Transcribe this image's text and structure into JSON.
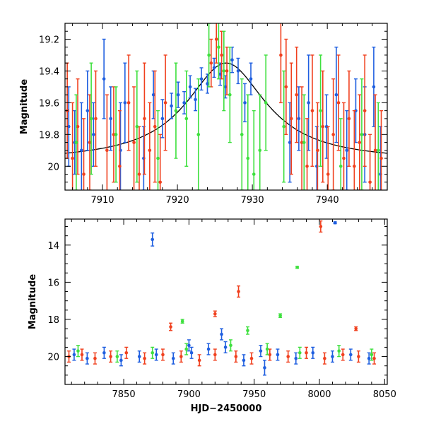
{
  "colors": {
    "blue": "#1f5fe0",
    "red": "#f0401e",
    "green": "#3ee03e",
    "model": "#000000"
  },
  "chart_data": [
    {
      "type": "scatter",
      "title": "",
      "xlabel": "",
      "ylabel": "Magnitude",
      "xlim": [
        7905,
        7948
      ],
      "ylim": [
        20.15,
        19.1
      ],
      "y_inverted": true,
      "xticks": [
        7910,
        7920,
        7930,
        7940
      ],
      "yticks": [
        19.2,
        19.4,
        19.6,
        19.8,
        20
      ],
      "ytick_labels": [
        "19.2",
        "19.4",
        "19.6",
        "19.8",
        "20"
      ],
      "model_curve": {
        "type": "microlensing-like peak",
        "t0": 7926.5,
        "peak_mag": 19.35,
        "baseline_mag": 19.97
      },
      "series": [
        {
          "color": "blue",
          "x": [
            7905.5,
            7906.3,
            7907.2,
            7908.0,
            7908.8,
            7910.2,
            7911.1,
            7912.4,
            7913.0,
            7915.5,
            7916.8,
            7918.0,
            7919.2,
            7920.1,
            7920.9,
            7921.7,
            7922.4,
            7923.2,
            7924.0,
            7924.9,
            7925.7,
            7926.4,
            7927.3,
            7928.1,
            7929.0,
            7929.8,
            7935.0,
            7936.2,
            7937.5,
            7938.6,
            7939.9,
            7941.2,
            7942.6,
            7943.8,
            7945.0,
            7946.2,
            7947.1
          ],
          "y": [
            19.75,
            19.85,
            19.9,
            19.65,
            19.8,
            19.45,
            19.7,
            19.9,
            19.6,
            19.95,
            19.55,
            19.7,
            19.62,
            19.55,
            19.6,
            19.5,
            19.58,
            19.45,
            19.48,
            19.38,
            19.42,
            19.5,
            19.33,
            19.4,
            19.6,
            19.45,
            19.85,
            19.7,
            19.6,
            20.0,
            19.75,
            19.55,
            19.9,
            19.65,
            19.8,
            19.5,
            20.05
          ],
          "err": [
            0.25,
            0.2,
            0.3,
            0.25,
            0.2,
            0.25,
            0.2,
            0.3,
            0.25,
            0.2,
            0.15,
            0.12,
            0.08,
            0.08,
            0.07,
            0.07,
            0.07,
            0.07,
            0.06,
            0.06,
            0.07,
            0.07,
            0.08,
            0.08,
            0.12,
            0.1,
            0.25,
            0.2,
            0.3,
            0.25,
            0.2,
            0.3,
            0.25,
            0.2,
            0.3,
            0.25,
            0.3
          ]
        },
        {
          "color": "red",
          "x": [
            7905.3,
            7906.0,
            7906.7,
            7907.5,
            7908.3,
            7909.1,
            7910.6,
            7911.5,
            7912.3,
            7913.5,
            7914.2,
            7914.9,
            7915.6,
            7916.3,
            7917.0,
            7917.7,
            7918.4,
            7924.5,
            7925.2,
            7925.9,
            7926.6,
            7933.8,
            7934.5,
            7935.2,
            7935.9,
            7936.6,
            7937.3,
            7938.0,
            7938.7,
            7939.4,
            7940.1,
            7940.8,
            7941.5,
            7942.2,
            7942.9,
            7943.6,
            7944.3,
            7945.0,
            7945.7,
            7946.4,
            7947.2
          ],
          "y": [
            19.65,
            19.95,
            19.75,
            20.05,
            19.85,
            19.7,
            19.9,
            19.8,
            20.0,
            19.6,
            19.85,
            20.05,
            19.7,
            19.9,
            19.75,
            20.1,
            19.6,
            19.35,
            19.2,
            19.3,
            19.4,
            19.3,
            19.5,
            19.7,
            19.55,
            19.85,
            20.0,
            19.65,
            19.9,
            19.75,
            20.05,
            19.8,
            19.6,
            19.95,
            19.7,
            20.0,
            19.85,
            19.65,
            20.1,
            19.9,
            19.95
          ],
          "err": [
            0.3,
            0.35,
            0.3,
            0.35,
            0.3,
            0.3,
            0.35,
            0.3,
            0.35,
            0.3,
            0.35,
            0.3,
            0.35,
            0.3,
            0.35,
            0.3,
            0.3,
            0.15,
            0.15,
            0.15,
            0.15,
            0.3,
            0.3,
            0.35,
            0.3,
            0.35,
            0.3,
            0.35,
            0.3,
            0.35,
            0.3,
            0.35,
            0.3,
            0.35,
            0.3,
            0.35,
            0.3,
            0.35,
            0.3,
            0.35,
            0.3
          ]
        },
        {
          "color": "green",
          "x": [
            7906.5,
            7908.5,
            7911.8,
            7914.6,
            7917.4,
            7919.8,
            7921.2,
            7922.8,
            7924.2,
            7925.5,
            7926.2,
            7927.0,
            7928.6,
            7929.4,
            7930.2,
            7931.0,
            7931.8,
            7934.2,
            7936.9,
            7939.1,
            7941.8,
            7944.6,
            7946.8
          ],
          "y": [
            19.85,
            19.7,
            19.8,
            19.75,
            19.95,
            19.65,
            19.7,
            19.8,
            19.3,
            19.25,
            19.4,
            19.55,
            19.8,
            19.95,
            20.05,
            19.9,
            19.6,
            19.75,
            19.85,
            19.65,
            20.0,
            19.8,
            19.9
          ],
          "err": [
            0.3,
            0.35,
            0.3,
            0.35,
            0.3,
            0.3,
            0.3,
            0.35,
            0.2,
            0.2,
            0.25,
            0.3,
            0.35,
            0.4,
            0.4,
            0.35,
            0.3,
            0.35,
            0.3,
            0.35,
            0.3,
            0.35,
            0.3
          ]
        }
      ]
    },
    {
      "type": "scatter",
      "title": "",
      "xlabel": "HJD−2450000",
      "ylabel": "Magnitude",
      "xlim": [
        7805,
        8052
      ],
      "ylim": [
        21.5,
        12.6
      ],
      "y_inverted": true,
      "xticks": [
        7850,
        7900,
        7950,
        8000,
        8050
      ],
      "yticks": [
        14,
        16,
        18,
        20
      ],
      "ytick_labels": [
        "14",
        "16",
        "18",
        "20"
      ],
      "series": [
        {
          "color": "blue",
          "x": [
            7812,
            7822,
            7835,
            7848,
            7862,
            7875,
            7888,
            7902,
            7915,
            7928,
            7942,
            7955,
            7968,
            7982,
            7995,
            8010,
            8024,
            8038,
            7872,
            7900,
            7925,
            8012,
            7958
          ],
          "y": [
            19.9,
            20.1,
            19.8,
            20.2,
            20.0,
            19.9,
            20.1,
            19.8,
            19.6,
            19.5,
            20.2,
            19.7,
            19.9,
            20.1,
            19.8,
            20.0,
            19.9,
            20.1,
            13.7,
            19.4,
            18.8,
            12.8,
            20.6
          ],
          "err": [
            0.3,
            0.3,
            0.3,
            0.3,
            0.3,
            0.3,
            0.3,
            0.3,
            0.3,
            0.3,
            0.3,
            0.3,
            0.3,
            0.3,
            0.3,
            0.3,
            0.3,
            0.3,
            0.35,
            0.3,
            0.3,
            0.05,
            0.4
          ]
        },
        {
          "color": "red",
          "x": [
            7808,
            7818,
            7828,
            7840,
            7852,
            7866,
            7880,
            7894,
            7908,
            7920,
            7936,
            7948,
            7962,
            7976,
            7990,
            8004,
            8018,
            8030,
            8042,
            7886,
            7920,
            7938,
            8001,
            8028
          ],
          "y": [
            20.0,
            19.9,
            20.1,
            20.0,
            19.8,
            20.1,
            19.9,
            20.0,
            20.2,
            19.9,
            20.0,
            20.1,
            19.9,
            20.0,
            19.8,
            20.1,
            19.9,
            20.0,
            20.1,
            18.4,
            17.7,
            16.5,
            13.0,
            18.5
          ],
          "err": [
            0.3,
            0.3,
            0.3,
            0.3,
            0.3,
            0.3,
            0.3,
            0.3,
            0.3,
            0.3,
            0.3,
            0.3,
            0.3,
            0.3,
            0.3,
            0.3,
            0.3,
            0.3,
            0.3,
            0.2,
            0.15,
            0.3,
            0.3,
            0.1
          ]
        },
        {
          "color": "green",
          "x": [
            7815,
            7845,
            7872,
            7898,
            7932,
            7960,
            7985,
            8015,
            8040,
            7895,
            7983,
            7970,
            7945
          ],
          "y": [
            19.7,
            20.0,
            19.8,
            19.6,
            19.4,
            19.6,
            19.8,
            19.7,
            19.9,
            18.1,
            15.2,
            17.8,
            18.6
          ],
          "err": [
            0.3,
            0.3,
            0.3,
            0.3,
            0.3,
            0.3,
            0.3,
            0.3,
            0.3,
            0.1,
            0.05,
            0.1,
            0.2
          ]
        }
      ]
    }
  ]
}
